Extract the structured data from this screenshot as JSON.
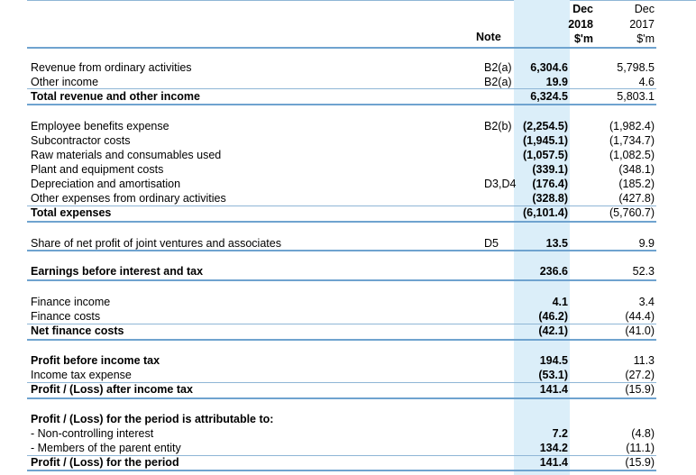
{
  "header": {
    "note": "Note",
    "col2018": {
      "l1": "Dec",
      "l2": "2018",
      "l3": "$'m"
    },
    "col2017": {
      "l1": "Dec",
      "l2": "2017",
      "l3": "$'m"
    }
  },
  "rows": [
    {
      "label": "Revenue from ordinary activities",
      "note": "B2(a)",
      "v2018": "6,304.6",
      "v2017": "5,798.5"
    },
    {
      "label": "Other income",
      "note": "B2(a)",
      "v2018": "19.9",
      "v2017": "4.6"
    },
    {
      "label": "Total revenue and other income",
      "note": "",
      "v2018": "6,324.5",
      "v2017": "5,803.1",
      "bold": true
    },
    {
      "label": "Employee benefits expense",
      "note": "B2(b)",
      "v2018": "(2,254.5)",
      "v2017": "(1,982.4)"
    },
    {
      "label": "Subcontractor costs",
      "note": "",
      "v2018": "(1,945.1)",
      "v2017": "(1,734.7)"
    },
    {
      "label": "Raw materials and consumables used",
      "note": "",
      "v2018": "(1,057.5)",
      "v2017": "(1,082.5)"
    },
    {
      "label": "Plant and equipment costs",
      "note": "",
      "v2018": "(339.1)",
      "v2017": "(348.1)"
    },
    {
      "label": "Depreciation and amortisation",
      "note": "D3,D4",
      "v2018": "(176.4)",
      "v2017": "(185.2)"
    },
    {
      "label": "Other expenses from ordinary activities",
      "note": "",
      "v2018": "(328.8)",
      "v2017": "(427.8)"
    },
    {
      "label": "Total expenses",
      "note": "",
      "v2018": "(6,101.4)",
      "v2017": "(5,760.7)",
      "bold": true
    },
    {
      "label": "Share of net profit of joint ventures and associates",
      "note": "D5",
      "v2018": "13.5",
      "v2017": "9.9"
    },
    {
      "label": "Earnings before interest and tax",
      "note": "",
      "v2018": "236.6",
      "v2017": "52.3",
      "bold": true
    },
    {
      "label": "Finance income",
      "note": "",
      "v2018": "4.1",
      "v2017": "3.4"
    },
    {
      "label": "Finance costs",
      "note": "",
      "v2018": "(46.2)",
      "v2017": "(44.4)"
    },
    {
      "label": "Net finance costs",
      "note": "",
      "v2018": "(42.1)",
      "v2017": "(41.0)",
      "bold": true
    },
    {
      "label": "Profit before income tax",
      "note": "",
      "v2018": "194.5",
      "v2017": "11.3",
      "bold": true
    },
    {
      "label": "Income tax expense",
      "note": "",
      "v2018": "(53.1)",
      "v2017": "(27.2)"
    },
    {
      "label": "Profit / (Loss) after income tax",
      "note": "",
      "v2018": "141.4",
      "v2017": "(15.9)",
      "bold": true
    },
    {
      "label": "Profit / (Loss) for the period is attributable to:",
      "note": "",
      "v2018": "",
      "v2017": "",
      "bold": true
    },
    {
      "label": " - Non-controlling interest",
      "note": "",
      "v2018": "7.2",
      "v2017": "(4.8)"
    },
    {
      "label": " - Members of the parent entity",
      "note": "",
      "v2018": "134.2",
      "v2017": "(11.1)"
    },
    {
      "label": "Profit / (Loss) for the period",
      "note": "",
      "v2018": "141.4",
      "v2017": "(15.9)",
      "bold": true
    }
  ]
}
